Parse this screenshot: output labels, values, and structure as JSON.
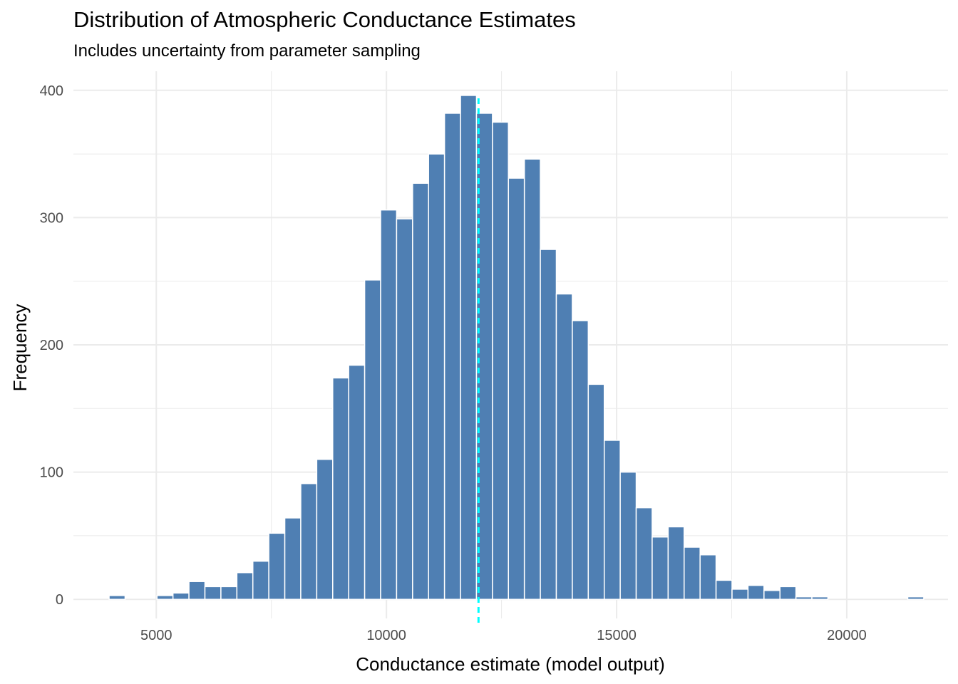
{
  "chart_data": {
    "type": "bar",
    "title": "Distribution of Atmospheric Conductance Estimates",
    "subtitle": "Includes uncertainty from parameter sampling",
    "xlabel": "Conductance estimate (model output)",
    "ylabel": "Frequency",
    "xlim": [
      3200,
      22200
    ],
    "ylim": [
      -15,
      415
    ],
    "x_ticks": [
      5000,
      10000,
      15000,
      20000
    ],
    "y_ticks": [
      0,
      100,
      200,
      300,
      400
    ],
    "bin_width": 347,
    "bin_start": 3975,
    "values": [
      3,
      0,
      0,
      3,
      5,
      14,
      10,
      10,
      21,
      30,
      52,
      64,
      91,
      110,
      174,
      184,
      251,
      306,
      299,
      327,
      350,
      382,
      396,
      382,
      375,
      331,
      346,
      275,
      240,
      219,
      169,
      125,
      100,
      72,
      49,
      57,
      41,
      35,
      15,
      8,
      11,
      7,
      10,
      2,
      2,
      0,
      0,
      0,
      0,
      0,
      2
    ],
    "vline": {
      "x": 12000,
      "style": "dashed"
    },
    "grid": true,
    "colors": {
      "bar": "#4f7fb3",
      "bar_stroke": "#ffffff",
      "vline": "#00ffff",
      "grid": "#ebebeb"
    }
  }
}
